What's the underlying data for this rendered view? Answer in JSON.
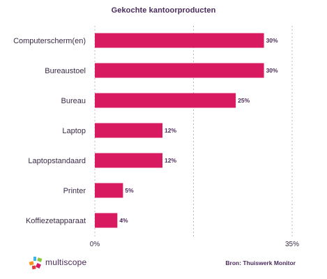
{
  "chart_data": {
    "type": "bar",
    "orientation": "horizontal",
    "title": "Gekochte kantoorproducten",
    "categories": [
      "Computerscherm(en)",
      "Bureaustoel",
      "Bureau",
      "Laptop",
      "Laptopstandaard",
      "Printer",
      "Koffiezetapparaat"
    ],
    "values": [
      30,
      30,
      25,
      12,
      12,
      5,
      4
    ],
    "value_labels": [
      "30%",
      "30%",
      "25%",
      "12%",
      "12%",
      "5%",
      "4%"
    ],
    "xlim": [
      0,
      35
    ],
    "x_ticks": [
      "0%",
      "35%"
    ],
    "grid": "dashed vertical",
    "bar_color": "#d81b60"
  },
  "footer": {
    "brand": "multiscope",
    "source": "Bron: Thuiswerk Monitor"
  }
}
